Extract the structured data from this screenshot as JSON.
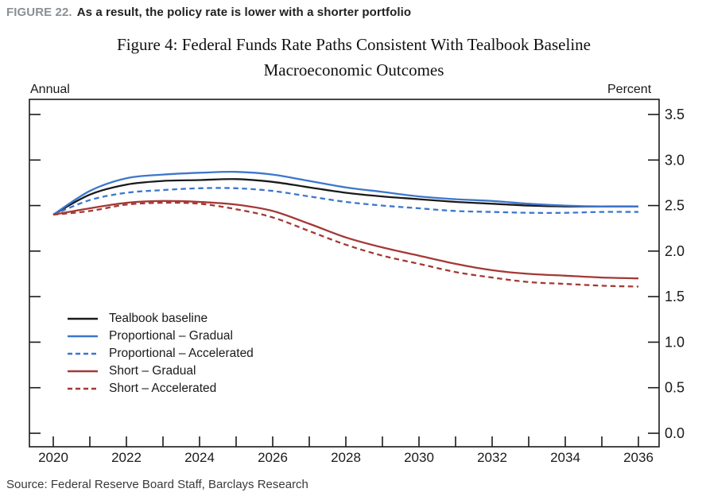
{
  "header": {
    "figure_label": "FIGURE 22.",
    "headline": "As a result, the policy rate is lower with a shorter portfolio"
  },
  "source": "Source: Federal Reserve Board Staff, Barclays Research",
  "colors": {
    "figure_label_gray": "#8b9094",
    "axis_black": "#1a1a1a",
    "blue": "#3d76cc",
    "red": "#a33936"
  },
  "chart_data": {
    "type": "line",
    "title": "Figure 4: Federal Funds Rate Paths Consistent With Tealbook Baseline Macroeconomic Outcomes",
    "title_lines": [
      "Figure 4: Federal Funds Rate Paths Consistent With Tealbook Baseline",
      "Macroeconomic Outcomes"
    ],
    "left_axis_unit": "Annual",
    "right_axis_unit": "Percent",
    "grid": false,
    "legend_position": "inside-lower-left",
    "x": [
      2020,
      2021,
      2022,
      2023,
      2024,
      2025,
      2026,
      2027,
      2028,
      2029,
      2030,
      2031,
      2032,
      2033,
      2034,
      2035,
      2036
    ],
    "x_tick_labels": [
      "2020",
      "2022",
      "2024",
      "2026",
      "2028",
      "2030",
      "2032",
      "2034",
      "2036"
    ],
    "y_ticks": [
      0.0,
      0.5,
      1.0,
      1.5,
      2.0,
      2.5,
      3.0,
      3.5
    ],
    "y_tick_labels": [
      "0.0",
      "0.5",
      "1.0",
      "1.5",
      "2.0",
      "2.5",
      "3.0",
      "3.5"
    ],
    "ylim": [
      0,
      3.5
    ],
    "xlim": [
      2020,
      2036
    ],
    "series": [
      {
        "name": "Tealbook baseline",
        "color": "#1a1a1a",
        "dash": false,
        "values": [
          2.4,
          2.62,
          2.73,
          2.77,
          2.78,
          2.79,
          2.76,
          2.7,
          2.64,
          2.6,
          2.57,
          2.54,
          2.52,
          2.5,
          2.49,
          2.49,
          2.49
        ]
      },
      {
        "name": "Proportional – Gradual",
        "color": "#3d76cc",
        "dash": false,
        "values": [
          2.4,
          2.66,
          2.8,
          2.84,
          2.86,
          2.87,
          2.84,
          2.77,
          2.7,
          2.65,
          2.6,
          2.57,
          2.55,
          2.52,
          2.5,
          2.49,
          2.49
        ]
      },
      {
        "name": "Proportional – Accelerated",
        "color": "#3d76cc",
        "dash": true,
        "values": [
          2.4,
          2.56,
          2.64,
          2.67,
          2.69,
          2.69,
          2.66,
          2.6,
          2.54,
          2.5,
          2.47,
          2.44,
          2.43,
          2.42,
          2.42,
          2.43,
          2.43
        ]
      },
      {
        "name": "Short – Gradual",
        "color": "#a33936",
        "dash": false,
        "values": [
          2.4,
          2.47,
          2.53,
          2.55,
          2.54,
          2.51,
          2.44,
          2.3,
          2.15,
          2.04,
          1.95,
          1.86,
          1.79,
          1.75,
          1.73,
          1.71,
          1.7
        ]
      },
      {
        "name": "Short – Accelerated",
        "color": "#a33936",
        "dash": true,
        "values": [
          2.4,
          2.44,
          2.51,
          2.53,
          2.52,
          2.46,
          2.37,
          2.22,
          2.07,
          1.95,
          1.86,
          1.77,
          1.71,
          1.66,
          1.64,
          1.62,
          1.61
        ]
      }
    ]
  }
}
